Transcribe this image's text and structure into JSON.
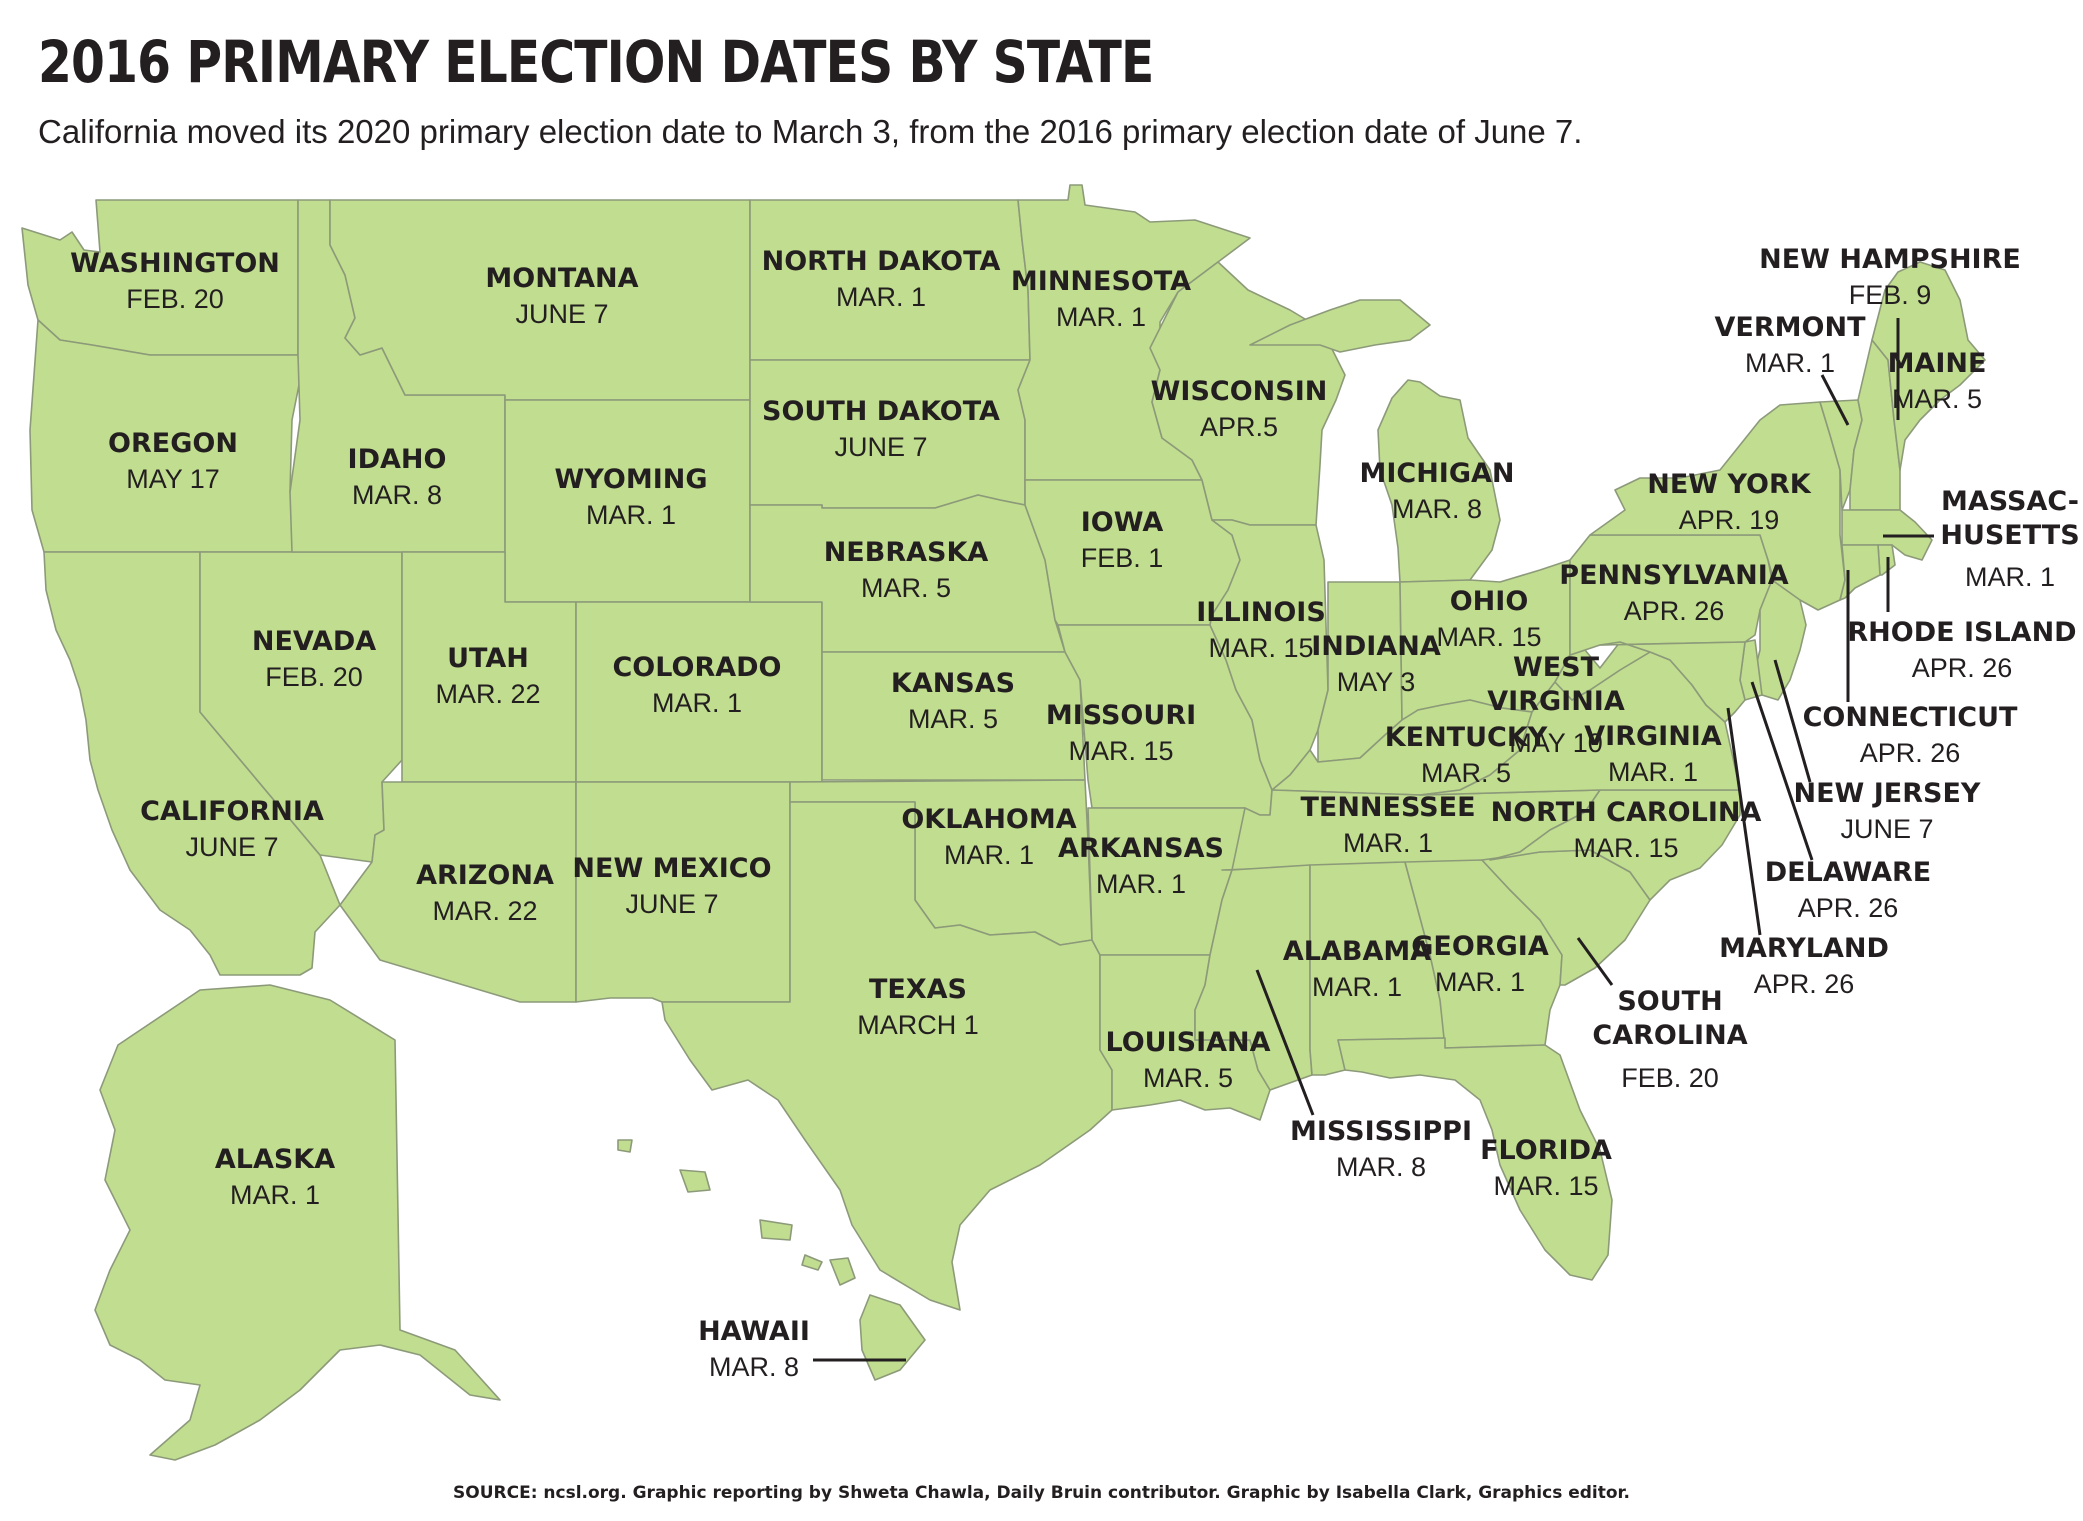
{
  "title": "2016 PRIMARY ELECTION DATES BY STATE",
  "subtitle": "California moved its 2020 primary election date to March 3, from the 2016 primary election date of June 7.",
  "source": "SOURCE: ncsl.org. Graphic reporting by Shweta Chawla, Daily Bruin contributor. Graphic by Isabella Clark, Graphics editor.",
  "colors": {
    "state_fill": "#c1dd8f",
    "border": "#8c9a7a",
    "text": "#231f20"
  },
  "states": [
    {
      "id": "washington",
      "name": "WASHINGTON",
      "date": "FEB. 20"
    },
    {
      "id": "oregon",
      "name": "OREGON",
      "date": "MAY 17"
    },
    {
      "id": "california",
      "name": "CALIFORNIA",
      "date": "JUNE 7"
    },
    {
      "id": "nevada",
      "name": "NEVADA",
      "date": "FEB. 20"
    },
    {
      "id": "idaho",
      "name": "IDAHO",
      "date": "MAR. 8"
    },
    {
      "id": "montana",
      "name": "MONTANA",
      "date": "JUNE 7"
    },
    {
      "id": "wyoming",
      "name": "WYOMING",
      "date": "MAR. 1"
    },
    {
      "id": "utah",
      "name": "UTAH",
      "date": "MAR. 22"
    },
    {
      "id": "arizona",
      "name": "ARIZONA",
      "date": "MAR. 22"
    },
    {
      "id": "colorado",
      "name": "COLORADO",
      "date": "MAR. 1"
    },
    {
      "id": "new-mexico",
      "name": "NEW MEXICO",
      "date": "JUNE 7"
    },
    {
      "id": "north-dakota",
      "name": "NORTH DAKOTA",
      "date": "MAR. 1"
    },
    {
      "id": "south-dakota",
      "name": "SOUTH DAKOTA",
      "date": "JUNE 7"
    },
    {
      "id": "nebraska",
      "name": "NEBRASKA",
      "date": "MAR. 5"
    },
    {
      "id": "kansas",
      "name": "KANSAS",
      "date": "MAR. 5"
    },
    {
      "id": "oklahoma",
      "name": "OKLAHOMA",
      "date": "MAR. 1"
    },
    {
      "id": "texas",
      "name": "TEXAS",
      "date": "MARCH 1"
    },
    {
      "id": "minnesota",
      "name": "MINNESOTA",
      "date": "MAR. 1"
    },
    {
      "id": "iowa",
      "name": "IOWA",
      "date": "FEB. 1"
    },
    {
      "id": "missouri",
      "name": "MISSOURI",
      "date": "MAR. 15"
    },
    {
      "id": "arkansas",
      "name": "ARKANSAS",
      "date": "MAR. 1"
    },
    {
      "id": "louisiana",
      "name": "LOUISIANA",
      "date": "MAR. 5"
    },
    {
      "id": "wisconsin",
      "name": "WISCONSIN",
      "date": "APR.5"
    },
    {
      "id": "illinois",
      "name": "ILLINOIS",
      "date": "MAR. 15"
    },
    {
      "id": "michigan",
      "name": "MICHIGAN",
      "date": "MAR. 8"
    },
    {
      "id": "indiana",
      "name": "INDIANA",
      "date": "MAY 3"
    },
    {
      "id": "ohio",
      "name": "OHIO",
      "date": "MAR. 15"
    },
    {
      "id": "kentucky",
      "name": "KENTUCKY",
      "date": "MAR. 5"
    },
    {
      "id": "tennessee",
      "name": "TENNESSEE",
      "date": "MAR. 1"
    },
    {
      "id": "mississippi",
      "name": "MISSISSIPPI",
      "date": "MAR. 8"
    },
    {
      "id": "alabama",
      "name": "ALABAMA",
      "date": "MAR. 1"
    },
    {
      "id": "georgia",
      "name": "GEORGIA",
      "date": "MAR. 1"
    },
    {
      "id": "florida",
      "name": "FLORIDA",
      "date": "MAR. 15"
    },
    {
      "id": "south-carolina",
      "name": "SOUTH CAROLINA",
      "date": "FEB. 20"
    },
    {
      "id": "north-carolina",
      "name": "NORTH CAROLINA",
      "date": "MAR. 15"
    },
    {
      "id": "virginia",
      "name": "VIRGINIA",
      "date": "MAR. 1"
    },
    {
      "id": "west-virginia",
      "name": "WEST VIRGINIA",
      "date": "MAY 10"
    },
    {
      "id": "pennsylvania",
      "name": "PENNSYLVANIA",
      "date": "APR. 26"
    },
    {
      "id": "new-york",
      "name": "NEW YORK",
      "date": "APR. 19"
    },
    {
      "id": "vermont",
      "name": "VERMONT",
      "date": "MAR. 1"
    },
    {
      "id": "new-hampshire",
      "name": "NEW HAMPSHIRE",
      "date": "FEB. 9"
    },
    {
      "id": "maine",
      "name": "MAINE",
      "date": "MAR. 5"
    },
    {
      "id": "massachusetts",
      "name": "MASSAC-HUSETTS",
      "date": "MAR. 1"
    },
    {
      "id": "rhode-island",
      "name": "RHODE ISLAND",
      "date": "APR. 26"
    },
    {
      "id": "connecticut",
      "name": "CONNECTICUT",
      "date": "APR. 26"
    },
    {
      "id": "new-jersey",
      "name": "NEW JERSEY",
      "date": "JUNE 7"
    },
    {
      "id": "delaware",
      "name": "DELAWARE",
      "date": "APR. 26"
    },
    {
      "id": "maryland",
      "name": "MARYLAND",
      "date": "APR. 26"
    },
    {
      "id": "alaska",
      "name": "ALASKA",
      "date": "MAR. 1"
    },
    {
      "id": "hawaii",
      "name": "HAWAII",
      "date": "MAR. 8"
    }
  ]
}
